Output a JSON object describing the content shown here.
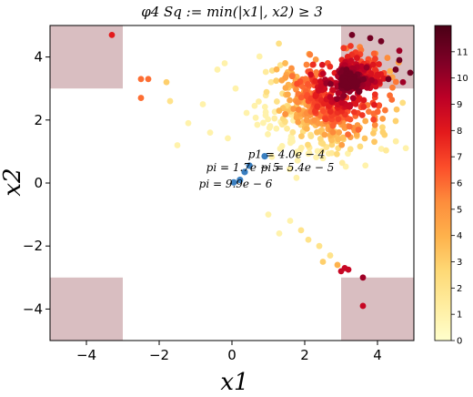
{
  "chart_data": {
    "type": "scatter",
    "title": "φ4 Sq := min(|x1|, x2) ≥ 3",
    "xlabel": "x1",
    "ylabel": "x2",
    "xlim": [
      -5,
      5
    ],
    "ylim": [
      -5,
      5
    ],
    "xticks": [
      -4,
      -2,
      0,
      2,
      4
    ],
    "yticks": [
      -4,
      -2,
      0,
      2,
      4
    ],
    "grid": false,
    "shaded_regions": [
      {
        "x": [
          -5,
          -3
        ],
        "y": [
          3,
          5
        ]
      },
      {
        "x": [
          3,
          5
        ],
        "y": [
          3,
          5
        ]
      },
      {
        "x": [
          -5,
          -3
        ],
        "y": [
          -5,
          -3
        ]
      },
      {
        "x": [
          3,
          5
        ],
        "y": [
          -5,
          -3
        ]
      }
    ],
    "region_color": "#c9a2a6",
    "colorbar": {
      "min": 0,
      "max": 12,
      "ticks": [
        0,
        1,
        2,
        3,
        4,
        5,
        6,
        7,
        8,
        9,
        10,
        11
      ],
      "colormap": "YlOrRd",
      "stops": [
        "#ffffcc",
        "#ffeda0",
        "#fed976",
        "#feb24c",
        "#fd8d3c",
        "#fc4e2a",
        "#e31a1c",
        "#bd0026",
        "#800026",
        "#4a0016"
      ]
    },
    "highlight_points": {
      "color": "#3a7fc0",
      "x": [
        0.05,
        0.22,
        0.35,
        0.48,
        0.9
      ],
      "y": [
        0.02,
        0.1,
        0.35,
        0.55,
        0.85
      ]
    },
    "annotations": [
      {
        "text": "p1 = 4.0e − 4",
        "x": 1.5,
        "y": 0.8
      },
      {
        "text": "pi = 1.7e − 5",
        "x": 0.3,
        "y": 0.38
      },
      {
        "text": "pi = 5.4e − 5",
        "x": 1.8,
        "y": 0.38
      },
      {
        "text": "pi = 9.9e − 6",
        "x": 0.1,
        "y": -0.15
      }
    ],
    "outlier_points": [
      {
        "x": -3.3,
        "y": 4.7,
        "value": 8
      },
      {
        "x": -2.5,
        "y": 3.3,
        "value": 6
      },
      {
        "x": -2.3,
        "y": 3.3,
        "value": 6
      },
      {
        "x": -2.5,
        "y": 2.7,
        "value": 6
      },
      {
        "x": -1.8,
        "y": 3.2,
        "value": 3
      },
      {
        "x": -1.7,
        "y": 2.6,
        "value": 2
      },
      {
        "x": -1.2,
        "y": 1.9,
        "value": 1
      },
      {
        "x": -0.8,
        "y": 2.5,
        "value": 1
      },
      {
        "x": -0.6,
        "y": 1.6,
        "value": 1
      },
      {
        "x": -0.4,
        "y": 3.6,
        "value": 1
      },
      {
        "x": -0.2,
        "y": 3.8,
        "value": 1
      },
      {
        "x": 0.1,
        "y": 3.0,
        "value": 1
      },
      {
        "x": -1.5,
        "y": 1.2,
        "value": 1
      },
      {
        "x": 1.0,
        "y": -1.0,
        "value": 1
      },
      {
        "x": 1.6,
        "y": -1.2,
        "value": 1
      },
      {
        "x": 1.3,
        "y": -1.6,
        "value": 1
      },
      {
        "x": 1.9,
        "y": -1.5,
        "value": 2
      },
      {
        "x": 2.1,
        "y": -1.8,
        "value": 2
      },
      {
        "x": 2.4,
        "y": -2.0,
        "value": 2
      },
      {
        "x": 2.7,
        "y": -2.3,
        "value": 2
      },
      {
        "x": 2.5,
        "y": -2.5,
        "value": 3
      },
      {
        "x": 2.9,
        "y": -2.6,
        "value": 4
      },
      {
        "x": 3.0,
        "y": -2.8,
        "value": 9
      },
      {
        "x": 3.1,
        "y": -2.7,
        "value": 9
      },
      {
        "x": 3.2,
        "y": -2.75,
        "value": 9
      },
      {
        "x": 3.6,
        "y": -3.0,
        "value": 10
      },
      {
        "x": 3.6,
        "y": -3.9,
        "value": 9
      },
      {
        "x": 4.3,
        "y": 3.3,
        "value": 11
      },
      {
        "x": 4.5,
        "y": 3.6,
        "value": 11
      },
      {
        "x": 4.6,
        "y": 3.9,
        "value": 11
      },
      {
        "x": 4.9,
        "y": 3.5,
        "value": 11
      },
      {
        "x": 4.7,
        "y": 3.2,
        "value": 10
      },
      {
        "x": 3.3,
        "y": 4.7,
        "value": 11
      },
      {
        "x": 3.8,
        "y": 4.6,
        "value": 11
      },
      {
        "x": 4.1,
        "y": 4.5,
        "value": 11
      },
      {
        "x": 4.6,
        "y": 4.2,
        "value": 10
      }
    ],
    "cloud": {
      "center": [
        2.6,
        2.5
      ],
      "spread": [
        0.8,
        0.7
      ],
      "count": 900,
      "value_range": [
        1,
        11
      ]
    }
  }
}
